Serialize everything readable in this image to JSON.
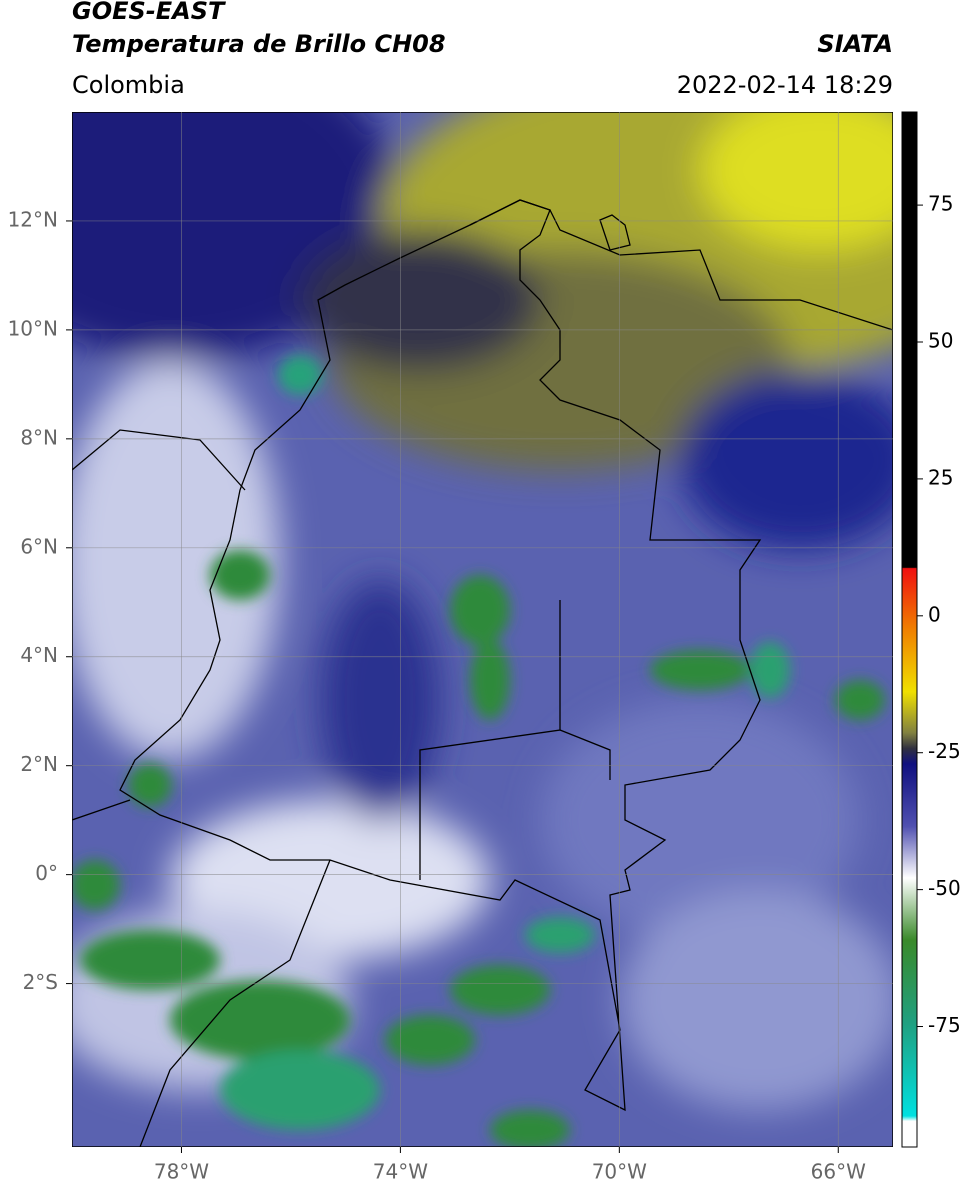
{
  "header": {
    "satellite": "GOES-EAST",
    "product": "Temperatura de Brillo CH08",
    "institution": "SIATA",
    "region": "Colombia",
    "datetime": "2022-02-14 18:29"
  },
  "map": {
    "xlim": [
      -80,
      -65
    ],
    "ylim": [
      -5,
      14
    ],
    "xticks": [
      {
        "value": -78,
        "label": "78°W"
      },
      {
        "value": -74,
        "label": "74°W"
      },
      {
        "value": -70,
        "label": "70°W"
      },
      {
        "value": -66,
        "label": "66°W"
      }
    ],
    "yticks": [
      {
        "value": 12,
        "label": "12°N"
      },
      {
        "value": 10,
        "label": "10°N"
      },
      {
        "value": 8,
        "label": "8°N"
      },
      {
        "value": 6,
        "label": "6°N"
      },
      {
        "value": 4,
        "label": "4°N"
      },
      {
        "value": 2,
        "label": "2°N"
      },
      {
        "value": 0,
        "label": "0°"
      },
      {
        "value": -2,
        "label": "2°S"
      }
    ],
    "grid": true
  },
  "colorbar": {
    "lim": [
      -97,
      92
    ],
    "ticks": [
      75,
      50,
      25,
      0,
      -25,
      -50,
      -75
    ]
  }
}
